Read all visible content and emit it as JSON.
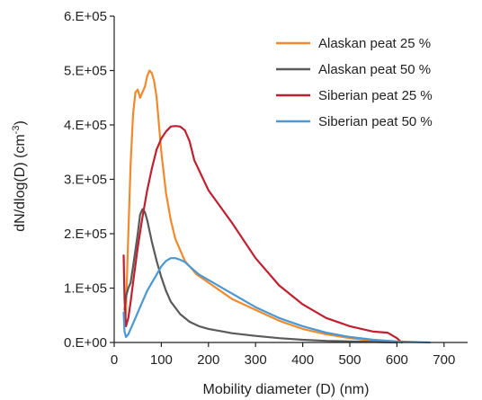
{
  "chart_data": {
    "type": "line",
    "xlabel": "Mobility  diameter (D) (nm)",
    "ylabel": "dN/dlog(D) (cm⁻³)",
    "ylabel_parts": {
      "main": "dN/dlog(D) (cm",
      "sup": "-3",
      "tail": ")"
    },
    "xlim": [
      0,
      750
    ],
    "ylim": [
      0,
      600000
    ],
    "x_ticks": [
      0,
      100,
      200,
      300,
      400,
      500,
      600,
      700
    ],
    "x_tick_labels": [
      "0",
      "100",
      "200",
      "300",
      "400",
      "500",
      "600",
      "700"
    ],
    "y_ticks": [
      0,
      100000,
      200000,
      300000,
      400000,
      500000,
      600000
    ],
    "y_tick_labels": [
      "0.E+00",
      "1.E+05",
      "2.E+05",
      "3.E+05",
      "4.E+05",
      "5.E+05",
      "6.E+05"
    ],
    "grid": false,
    "legend_position": "top-right",
    "series": [
      {
        "name": "Alaskan peat 25 %",
        "color": "#f08a2c",
        "x": [
          22,
          25,
          30,
          35,
          40,
          45,
          50,
          55,
          60,
          65,
          70,
          75,
          80,
          85,
          90,
          95,
          100,
          110,
          120,
          130,
          150,
          175,
          200,
          250,
          300,
          350,
          400,
          450,
          500,
          550,
          600
        ],
        "y": [
          30000,
          60000,
          200000,
          330000,
          420000,
          460000,
          465000,
          450000,
          460000,
          470000,
          490000,
          500000,
          495000,
          480000,
          450000,
          400000,
          350000,
          275000,
          225000,
          190000,
          150000,
          125000,
          110000,
          80000,
          60000,
          40000,
          25000,
          15000,
          8000,
          3000,
          0
        ]
      },
      {
        "name": "Alaskan peat 50 %",
        "color": "#5a5a5a",
        "x": [
          22,
          25,
          30,
          35,
          40,
          45,
          50,
          55,
          60,
          65,
          70,
          75,
          80,
          90,
          100,
          110,
          120,
          140,
          160,
          180,
          200,
          250,
          300,
          350,
          400,
          450,
          500,
          550,
          600
        ],
        "y": [
          60000,
          85000,
          100000,
          110000,
          140000,
          170000,
          200000,
          235000,
          245000,
          240000,
          225000,
          205000,
          185000,
          150000,
          120000,
          95000,
          75000,
          52000,
          38000,
          30000,
          25000,
          17000,
          12000,
          8000,
          5000,
          3000,
          2000,
          1000,
          0
        ]
      },
      {
        "name": "Siberian peat 25 %",
        "color": "#c0202f",
        "x": [
          20,
          22,
          25,
          30,
          35,
          40,
          50,
          60,
          70,
          80,
          90,
          100,
          110,
          120,
          130,
          140,
          150,
          160,
          170,
          200,
          250,
          300,
          350,
          400,
          450,
          500,
          550,
          580,
          600,
          610
        ],
        "y": [
          160000,
          80000,
          30000,
          45000,
          75000,
          110000,
          175000,
          230000,
          280000,
          320000,
          355000,
          375000,
          388000,
          397000,
          398000,
          397000,
          390000,
          370000,
          335000,
          280000,
          220000,
          155000,
          105000,
          70000,
          45000,
          30000,
          20000,
          18000,
          8000,
          0
        ]
      },
      {
        "name": "Siberian peat 50 %",
        "color": "#4a97d4",
        "x": [
          20,
          22,
          25,
          30,
          35,
          40,
          50,
          60,
          70,
          80,
          90,
          100,
          110,
          120,
          130,
          140,
          150,
          160,
          180,
          200,
          250,
          300,
          350,
          400,
          450,
          500,
          550,
          600,
          650,
          670
        ],
        "y": [
          55000,
          20000,
          10000,
          15000,
          25000,
          35000,
          55000,
          75000,
          95000,
          110000,
          125000,
          140000,
          150000,
          155000,
          155000,
          152000,
          148000,
          140000,
          125000,
          115000,
          90000,
          65000,
          45000,
          30000,
          18000,
          10000,
          5000,
          2000,
          500,
          0
        ]
      }
    ]
  }
}
